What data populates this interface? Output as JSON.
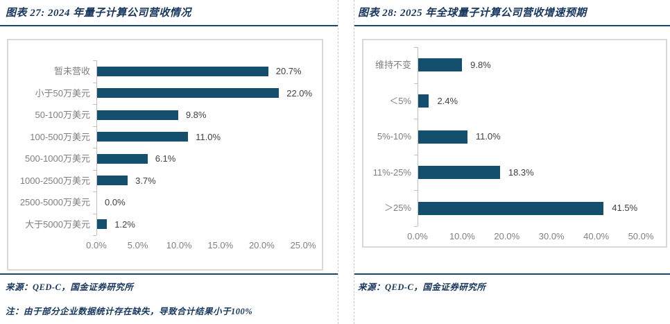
{
  "colors": {
    "background": "#FFFFFF",
    "bar": "#14506E",
    "navy_rule": "#17476B",
    "title_text": "#17365D",
    "source_text": "#17365D",
    "category_label": "#7F7F7F",
    "value_label": "#404040",
    "axis_label": "#808080",
    "axis_line": "#BFBFBF",
    "card_border": "#D9D9D9",
    "divider": "#C8C8C8"
  },
  "panels": [
    {
      "title": "图表 27: 2024 年量子计算公司营收情况",
      "source": "来源：QED-C，国金证券研究所",
      "note": "注：由于部分企业数据统计存在缺失，导致合计结果小于100%"
    },
    {
      "title": "图表 28: 2025 年全球量子计算公司营收增速预期",
      "source": "来源：QED-C，国金证券研究所"
    }
  ],
  "chart_data": [
    {
      "type": "bar",
      "orientation": "horizontal",
      "title": "2024 年量子计算公司营收情况",
      "categories": [
        "暂未营收",
        "小于50万美元",
        "50-100万美元",
        "100-500万美元",
        "500-1000万美元",
        "1000-2500万美元",
        "2500-5000万美元",
        "大于5000万美元"
      ],
      "values": [
        20.7,
        22.0,
        9.8,
        11.0,
        6.1,
        3.7,
        0.0,
        1.2
      ],
      "value_labels": [
        "20.7%",
        "22.0%",
        "9.8%",
        "11.0%",
        "6.1%",
        "3.7%",
        "0.0%",
        "1.2%"
      ],
      "xlabel": "",
      "ylabel": "",
      "xlim": [
        0,
        25
      ],
      "xtick_labels": [
        "0.0%",
        "5.0%",
        "10.0%",
        "15.0%",
        "20.0%",
        "25.0%"
      ],
      "grid": false,
      "legend": null
    },
    {
      "type": "bar",
      "orientation": "horizontal",
      "title": "2025 年全球量子计算公司营收增速预期",
      "categories": [
        "维持不变",
        "＜5%",
        "5%-10%",
        "11%-25%",
        "＞25%"
      ],
      "values": [
        9.8,
        2.4,
        11.0,
        18.3,
        41.5
      ],
      "value_labels": [
        "9.8%",
        "2.4%",
        "11.0%",
        "18.3%",
        "41.5%"
      ],
      "xlabel": "",
      "ylabel": "",
      "xlim": [
        0,
        50
      ],
      "xtick_labels": [
        "0.0%",
        "10.0%",
        "20.0%",
        "30.0%",
        "40.0%",
        "50.0%"
      ],
      "grid": false,
      "legend": null
    }
  ]
}
